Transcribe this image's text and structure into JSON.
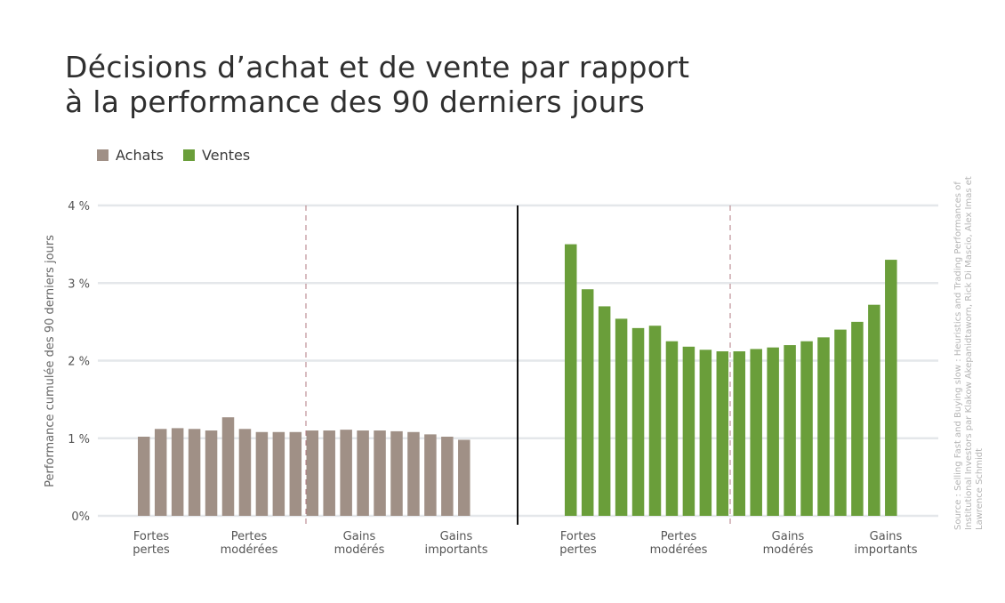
{
  "chart_data": {
    "type": "bar",
    "title_lines": [
      "Décisions d’achat et de vente par rapport",
      "à la performance des 90 derniers jours"
    ],
    "ylabel": "Performance cumulée des 90 derniers jours",
    "ylim": [
      0,
      4
    ],
    "yticks": [
      {
        "value": 0,
        "label": "0%"
      },
      {
        "value": 1,
        "label": "1 %"
      },
      {
        "value": 2,
        "label": "2 %"
      },
      {
        "value": 3,
        "label": "3 %"
      },
      {
        "value": 4,
        "label": "4 %"
      }
    ],
    "grid": true,
    "legend_position": "top-left",
    "group_labels": [
      [
        "Fortes",
        "pertes"
      ],
      [
        "Pertes",
        "modérées"
      ],
      [
        "Gains",
        "modérés"
      ],
      [
        "Gains",
        "importants"
      ]
    ],
    "series": [
      {
        "name": "Achats",
        "color": "#a09086",
        "values": [
          1.02,
          1.12,
          1.13,
          1.12,
          1.1,
          1.27,
          1.12,
          1.08,
          1.08,
          1.08,
          1.1,
          1.1,
          1.11,
          1.1,
          1.1,
          1.09,
          1.08,
          1.05,
          1.02,
          0.98
        ]
      },
      {
        "name": "Ventes",
        "color": "#6a9e3a",
        "values": [
          3.5,
          2.92,
          2.7,
          2.54,
          2.42,
          2.45,
          2.25,
          2.18,
          2.14,
          2.12,
          2.12,
          2.15,
          2.17,
          2.2,
          2.25,
          2.3,
          2.4,
          2.5,
          2.72,
          3.3
        ]
      }
    ]
  },
  "source": "Source : Selling Fast and Buying slow : Heuristics and Trading Performances of Institutional Investors par Klakow Akepanidtaworn, Rick Di Mascio, Alex Imas et Lawrence Schmidt",
  "colors": {
    "grid": "#e4e7ea",
    "divider": "#b07a80",
    "separator": "#111111"
  }
}
